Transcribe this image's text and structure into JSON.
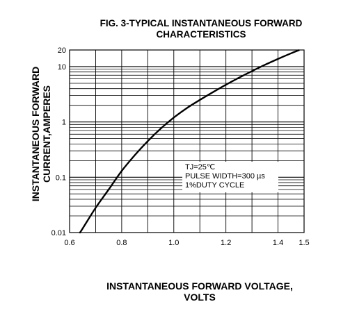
{
  "chart_data": {
    "type": "line",
    "title_line1": "FIG. 3-TYPICAL INSTANTANEOUS FORWARD",
    "title_line2": "CHARACTERISTICS",
    "xlabel_line1": "INSTANTANEOUS FORWARD VOLTAGE,",
    "xlabel_line2": "VOLTS",
    "ylabel_line1": "INSTANTANEOUS FORWARD",
    "ylabel_line2": "CURRENT,AMPERES",
    "xlim": [
      0.6,
      1.5
    ],
    "ylim": [
      0.01,
      20
    ],
    "yscale": "log",
    "grid": true,
    "x_tick_labels": [
      "0.6",
      "0.8",
      "1.0",
      "1.2",
      "1.4",
      "1.5"
    ],
    "x_ticks": [
      0.6,
      0.8,
      1.0,
      1.2,
      1.4,
      1.5
    ],
    "y_tick_labels": [
      "0.01",
      "0.1",
      "1",
      "10",
      "20"
    ],
    "y_ticks": [
      0.01,
      0.1,
      1,
      10,
      20
    ],
    "x_grid": [
      0.6,
      0.7,
      0.8,
      0.9,
      1.0,
      1.1,
      1.2,
      1.3,
      1.4,
      1.5
    ],
    "annotation": [
      "TJ=25℃",
      "PULSE WIDTH=300 µs",
      "1%DUTY CYCLE"
    ],
    "series": [
      {
        "x": [
          0.64,
          0.65,
          0.7,
          0.75,
          0.8,
          0.85,
          0.9,
          0.95,
          1.0,
          1.05,
          1.1,
          1.15,
          1.2,
          1.25,
          1.3,
          1.35,
          1.4,
          1.45,
          1.48
        ],
        "y": [
          0.01,
          0.0118,
          0.028,
          0.06,
          0.13,
          0.25,
          0.45,
          0.76,
          1.2,
          1.78,
          2.5,
          3.45,
          4.7,
          6.3,
          8.3,
          10.8,
          13.8,
          17.4,
          19.8
        ]
      }
    ]
  }
}
